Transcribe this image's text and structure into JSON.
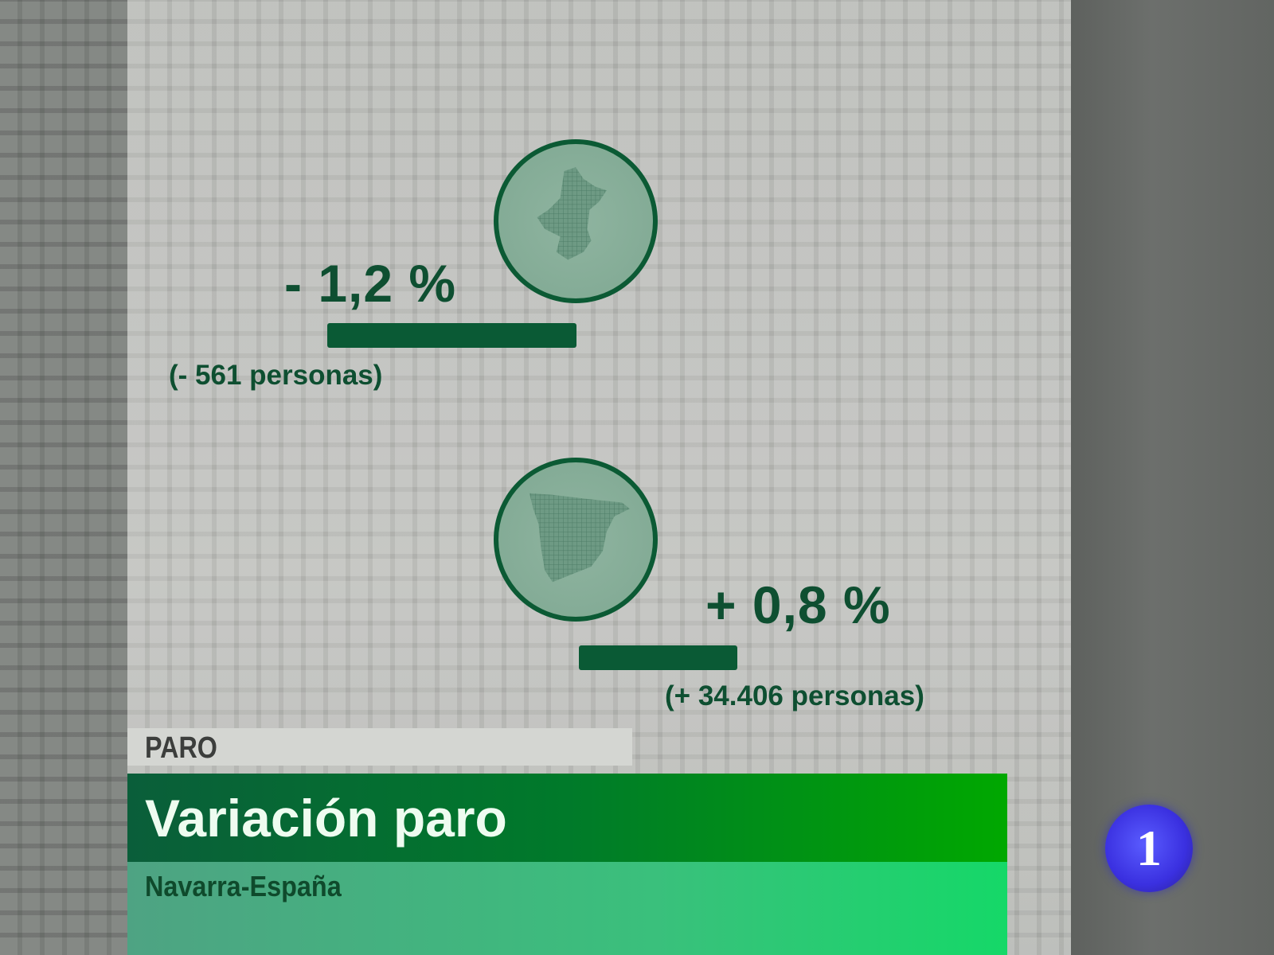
{
  "navarra": {
    "percent": "- 1,2 %",
    "people": "(- 561 personas)",
    "icon": "navarra-map-icon"
  },
  "espana": {
    "percent": "+ 0,8 %",
    "people": "(+ 34.406 personas)",
    "icon": "spain-map-icon"
  },
  "caption": {
    "section": "PARO",
    "title": "Variación paro",
    "subtitle": "Navarra-España"
  },
  "channel_logo": {
    "text": "1"
  },
  "colors": {
    "accent_green": "#0a5a35",
    "title_green": "#007a2a",
    "logo_blue": "#3a30e0"
  }
}
